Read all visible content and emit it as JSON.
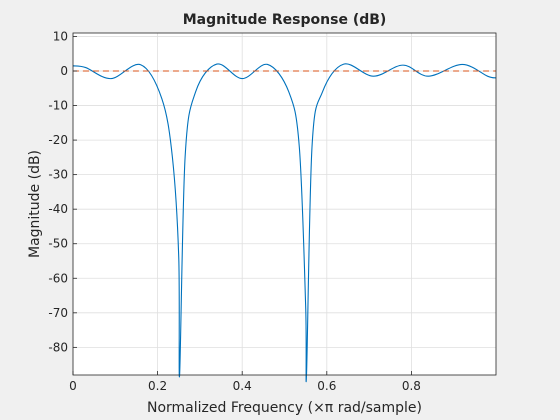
{
  "chart_data": {
    "type": "line",
    "title": "Magnitude Response (dB)",
    "xlabel": "Normalized Frequency (×π rad/sample)",
    "ylabel": "Magnitude (dB)",
    "xlim": [
      0,
      1
    ],
    "ylim": [
      -88,
      11
    ],
    "grid": true,
    "xticks": [
      0,
      0.2,
      0.4,
      0.6,
      0.8
    ],
    "xtick_labels": [
      "0",
      "0.2",
      "0.4",
      "0.6",
      "0.8"
    ],
    "yticks": [
      10,
      0,
      -10,
      -20,
      -30,
      -40,
      -50,
      -60,
      -70,
      -80
    ],
    "ytick_labels": [
      "10",
      "0",
      "-10",
      "-20",
      "-30",
      "-40",
      "-50",
      "-60",
      "-70",
      "-80"
    ],
    "series": [
      {
        "style": "solid",
        "color": "#0072bd",
        "x": [
          0,
          0.03,
          0.09,
          0.16,
          0.21,
          0.235,
          0.25,
          0.252,
          0.265,
          0.29,
          0.34,
          0.4,
          0.46,
          0.51,
          0.535,
          0.55,
          0.552,
          0.565,
          0.59,
          0.64,
          0.71,
          0.78,
          0.84,
          0.92,
          0.98,
          1.0
        ],
        "y": [
          1.5,
          1.0,
          -2.2,
          1.8,
          -8,
          -25,
          -54,
          -88,
          -25,
          -6,
          2.0,
          -2.2,
          1.9,
          -6,
          -22,
          -68,
          -88,
          -22,
          -6,
          2.0,
          -1.5,
          1.7,
          -1.5,
          1.9,
          -1.5,
          -2.0
        ]
      },
      {
        "style": "dashed",
        "color": "#d95319",
        "x": [
          0,
          1
        ],
        "y": [
          0,
          0
        ]
      }
    ]
  }
}
